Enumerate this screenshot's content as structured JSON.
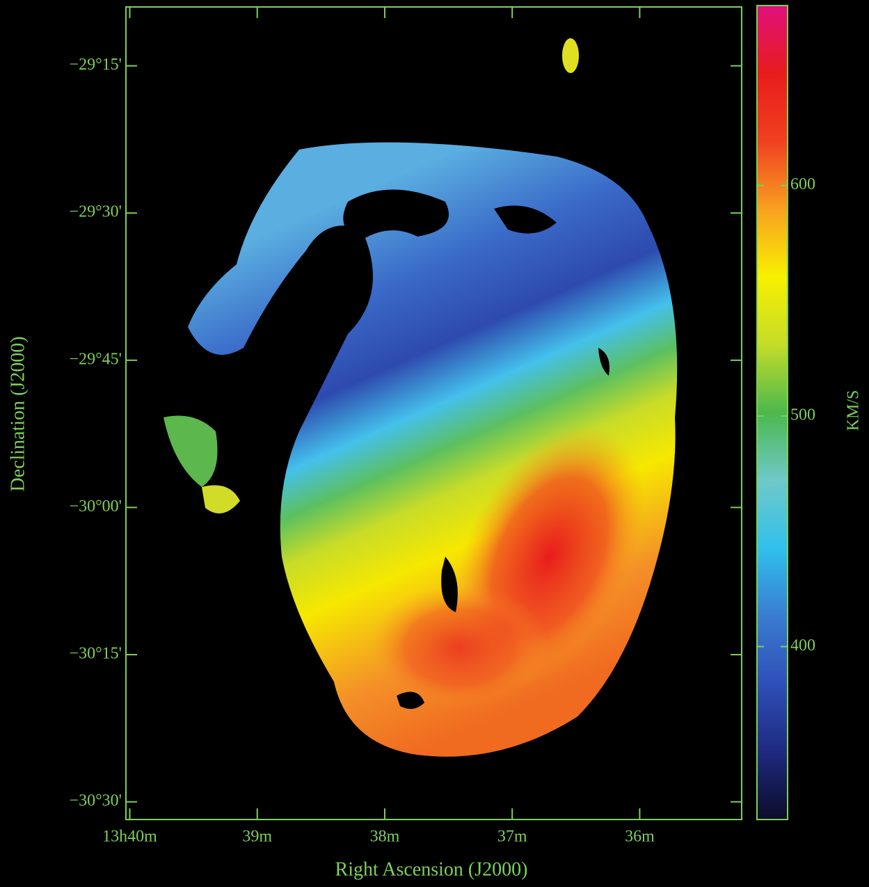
{
  "chart_data": {
    "type": "velocity-map",
    "x_label": "Right Ascension (J2000)",
    "y_label": "Declination (J2000)",
    "xlim": [
      820.03,
      815.2
    ],
    "xticks": [
      {
        "value": 820,
        "label": "13h40m"
      },
      {
        "value": 819,
        "label": "39m"
      },
      {
        "value": 818,
        "label": "38m"
      },
      {
        "value": 817,
        "label": "37m"
      },
      {
        "value": 816,
        "label": "36m"
      }
    ],
    "ylim": [
      -30.53,
      -29.15
    ],
    "yticks": [
      {
        "value": -29.25,
        "label": "−29°15'"
      },
      {
        "value": -29.5,
        "label": "−29°30'"
      },
      {
        "value": -29.75,
        "label": "−29°45'"
      },
      {
        "value": -30,
        "label": "−30°00'"
      },
      {
        "value": -30.25,
        "label": "−30°15'"
      },
      {
        "value": -30.5,
        "label": "−30°30'"
      }
    ],
    "colorbar_label": "KM/S",
    "clim": [
      325,
      678
    ],
    "cticks": [
      400,
      500,
      600
    ],
    "colormap": [
      "#0c0c28",
      "#1e2a80",
      "#2f4fb8",
      "#3a7cd0",
      "#30c0ec",
      "#70c8c8",
      "#4cb84c",
      "#c4dc28",
      "#f8f000",
      "#f8a020",
      "#f04020",
      "#e81c1c",
      "#e0107c"
    ],
    "axis_color": "#7ed05a"
  }
}
